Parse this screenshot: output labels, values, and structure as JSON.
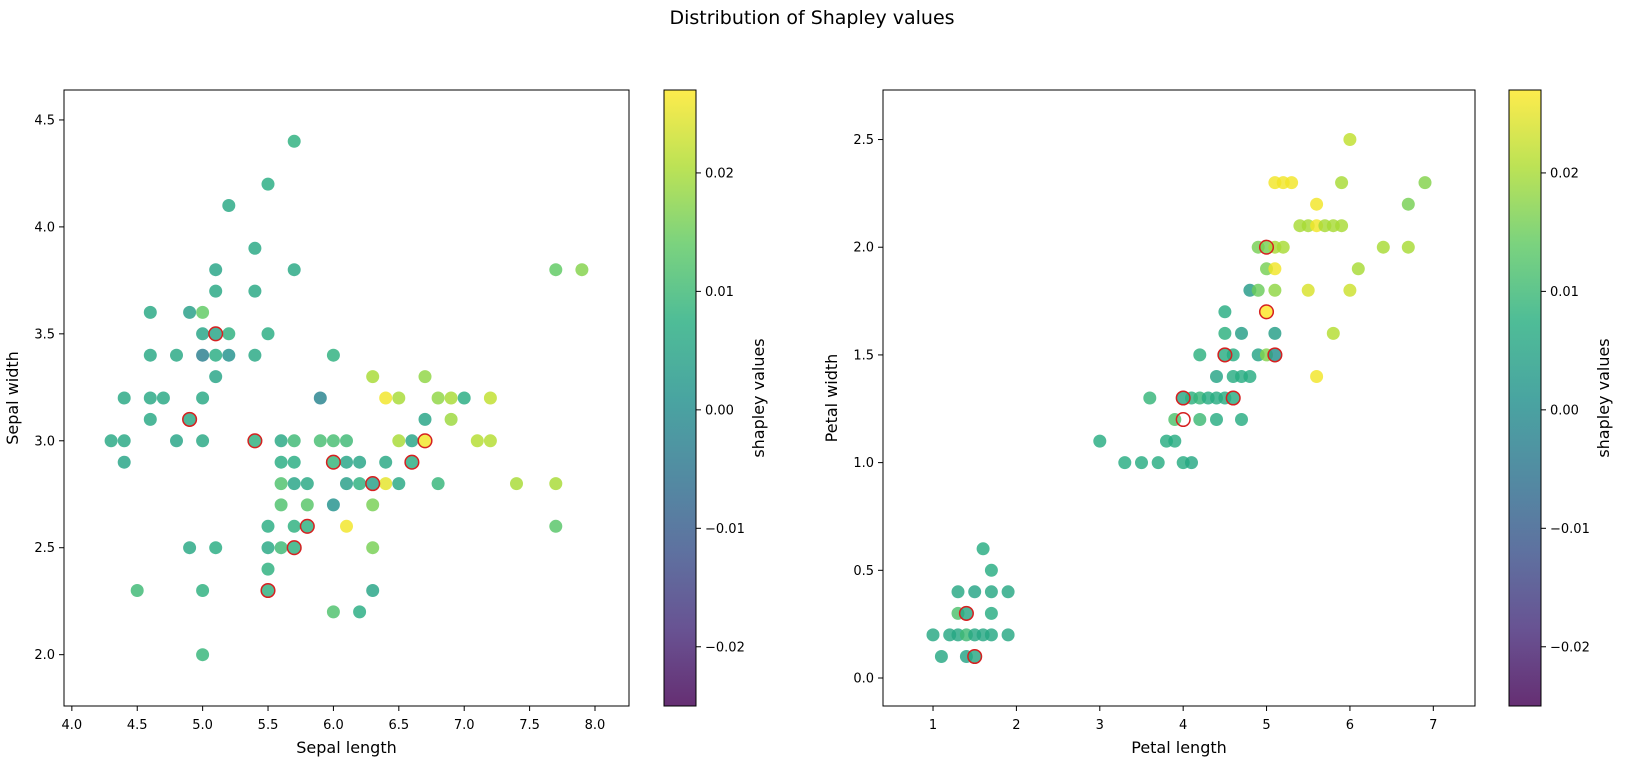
{
  "title": "Distribution of Shapley values",
  "colorbar": {
    "label": "shapley values",
    "range": [
      -0.025,
      0.027
    ],
    "ticks": [
      -0.02,
      -0.01,
      0.0,
      0.01,
      0.02
    ],
    "tick_labels": [
      "−0.02",
      "−0.01",
      "0.00",
      "0.01",
      "0.02"
    ],
    "colormap": "viridis"
  },
  "chart_data": [
    {
      "type": "scatter",
      "title": "",
      "xlabel": "Sepal length",
      "ylabel": "Sepal width",
      "xlim": [
        3.94,
        8.26
      ],
      "ylim": [
        1.76,
        4.64
      ],
      "xticks": [
        4.0,
        4.5,
        5.0,
        5.5,
        6.0,
        6.5,
        7.0,
        7.5,
        8.0
      ],
      "xtick_labels": [
        "4.0",
        "4.5",
        "5.0",
        "5.5",
        "6.0",
        "6.5",
        "7.0",
        "7.5",
        "8.0"
      ],
      "yticks": [
        2.0,
        2.5,
        3.0,
        3.5,
        4.0,
        4.5
      ],
      "ytick_labels": [
        "2.0",
        "2.5",
        "3.0",
        "3.5",
        "4.0",
        "4.5"
      ],
      "grid": false,
      "points": [
        [
          5.7,
          4.4,
          0.008
        ],
        [
          5.5,
          4.2,
          0.007
        ],
        [
          5.2,
          4.1,
          0.006
        ],
        [
          5.4,
          3.9,
          0.006
        ],
        [
          5.1,
          3.8,
          0.005
        ],
        [
          5.7,
          3.8,
          0.006
        ],
        [
          5.4,
          3.7,
          0.006
        ],
        [
          5.1,
          3.7,
          0.006
        ],
        [
          4.6,
          3.6,
          0.006
        ],
        [
          4.9,
          3.6,
          0.004
        ],
        [
          5.0,
          3.6,
          0.014
        ],
        [
          5.0,
          3.5,
          0.005
        ],
        [
          5.1,
          3.5,
          0.005
        ],
        [
          5.2,
          3.5,
          0.008
        ],
        [
          5.5,
          3.5,
          0.007
        ],
        [
          4.6,
          3.4,
          0.006
        ],
        [
          4.8,
          3.4,
          0.006
        ],
        [
          5.0,
          3.4,
          -0.003
        ],
        [
          5.1,
          3.4,
          0.007
        ],
        [
          5.2,
          3.4,
          0.001
        ],
        [
          5.4,
          3.4,
          0.006
        ],
        [
          6.0,
          3.4,
          0.008
        ],
        [
          5.1,
          3.3,
          0.005
        ],
        [
          6.3,
          3.3,
          0.02
        ],
        [
          6.7,
          3.3,
          0.018
        ],
        [
          4.4,
          3.2,
          0.006
        ],
        [
          4.6,
          3.2,
          0.006
        ],
        [
          4.7,
          3.2,
          0.006
        ],
        [
          5.0,
          3.2,
          0.006
        ],
        [
          6.4,
          3.2,
          0.026
        ],
        [
          6.5,
          3.2,
          0.02
        ],
        [
          6.8,
          3.2,
          0.018
        ],
        [
          6.9,
          3.2,
          0.02
        ],
        [
          7.0,
          3.2,
          0.007
        ],
        [
          7.2,
          3.2,
          0.022
        ],
        [
          5.9,
          3.2,
          -0.002
        ],
        [
          4.6,
          3.1,
          0.006
        ],
        [
          4.9,
          3.1,
          0.006
        ],
        [
          6.7,
          3.1,
          0.005
        ],
        [
          6.9,
          3.1,
          0.019
        ],
        [
          4.3,
          3.0,
          0.006
        ],
        [
          4.4,
          3.0,
          0.006
        ],
        [
          4.8,
          3.0,
          0.005
        ],
        [
          5.0,
          3.0,
          0.006
        ],
        [
          5.4,
          3.0,
          0.008
        ],
        [
          5.6,
          3.0,
          0.006
        ],
        [
          5.7,
          3.0,
          0.01
        ],
        [
          5.9,
          3.0,
          0.011
        ],
        [
          6.0,
          3.0,
          0.011
        ],
        [
          6.1,
          3.0,
          0.01
        ],
        [
          6.5,
          3.0,
          0.02
        ],
        [
          6.6,
          3.0,
          0.005
        ],
        [
          6.7,
          3.0,
          0.026
        ],
        [
          7.1,
          3.0,
          0.021
        ],
        [
          7.2,
          3.0,
          0.021
        ],
        [
          4.4,
          2.9,
          0.005
        ],
        [
          5.6,
          2.9,
          0.007
        ],
        [
          5.7,
          2.9,
          0.007
        ],
        [
          6.0,
          2.9,
          0.009
        ],
        [
          6.1,
          2.9,
          0.005
        ],
        [
          6.2,
          2.9,
          0.005
        ],
        [
          6.4,
          2.9,
          0.006
        ],
        [
          6.6,
          2.9,
          0.007
        ],
        [
          5.6,
          2.8,
          0.012
        ],
        [
          5.7,
          2.8,
          0.005
        ],
        [
          5.8,
          2.8,
          0.006
        ],
        [
          6.1,
          2.8,
          0.004
        ],
        [
          6.2,
          2.8,
          0.008
        ],
        [
          6.3,
          2.8,
          0.004
        ],
        [
          6.4,
          2.8,
          0.025
        ],
        [
          6.5,
          2.8,
          0.006
        ],
        [
          6.8,
          2.8,
          0.009
        ],
        [
          7.4,
          2.8,
          0.02
        ],
        [
          7.7,
          2.8,
          0.02
        ],
        [
          5.6,
          2.7,
          0.012
        ],
        [
          5.8,
          2.7,
          0.013
        ],
        [
          6.0,
          2.7,
          0.001
        ],
        [
          6.3,
          2.7,
          0.016
        ],
        [
          5.5,
          2.6,
          0.007
        ],
        [
          5.7,
          2.6,
          0.008
        ],
        [
          5.8,
          2.6,
          0.008
        ],
        [
          6.1,
          2.6,
          0.026
        ],
        [
          7.7,
          2.6,
          0.013
        ],
        [
          4.9,
          2.5,
          0.006
        ],
        [
          5.1,
          2.5,
          0.007
        ],
        [
          5.5,
          2.5,
          0.006
        ],
        [
          5.6,
          2.5,
          0.01
        ],
        [
          5.7,
          2.5,
          0.008
        ],
        [
          6.3,
          2.5,
          0.016
        ],
        [
          5.5,
          2.4,
          0.008
        ],
        [
          4.5,
          2.3,
          0.01
        ],
        [
          5.0,
          2.3,
          0.008
        ],
        [
          5.5,
          2.3,
          0.008
        ],
        [
          6.3,
          2.3,
          0.005
        ],
        [
          6.0,
          2.2,
          0.012
        ],
        [
          6.2,
          2.2,
          0.007
        ],
        [
          5.0,
          2.0,
          0.009
        ],
        [
          7.7,
          3.8,
          0.014
        ],
        [
          7.9,
          3.8,
          0.017
        ]
      ],
      "highlighted": [
        [
          5.1,
          3.5
        ],
        [
          4.9,
          3.1
        ],
        [
          5.4,
          3.0
        ],
        [
          6.7,
          3.0
        ],
        [
          6.0,
          2.9
        ],
        [
          6.6,
          2.9
        ],
        [
          6.3,
          2.8
        ],
        [
          5.8,
          2.6
        ],
        [
          5.7,
          2.5
        ],
        [
          5.5,
          2.3
        ]
      ]
    },
    {
      "type": "scatter",
      "title": "",
      "xlabel": "Petal length",
      "ylabel": "Petal width",
      "xlim": [
        0.4,
        7.5
      ],
      "ylim": [
        -0.13,
        2.73
      ],
      "xticks": [
        1,
        2,
        3,
        4,
        5,
        6,
        7
      ],
      "xtick_labels": [
        "1",
        "2",
        "3",
        "4",
        "5",
        "6",
        "7"
      ],
      "yticks": [
        0.0,
        0.5,
        1.0,
        1.5,
        2.0,
        2.5
      ],
      "ytick_labels": [
        "0.0",
        "0.5",
        "1.0",
        "1.5",
        "2.0",
        "2.5"
      ],
      "grid": false,
      "points": [
        [
          1.0,
          0.2,
          0.006
        ],
        [
          1.1,
          0.1,
          0.006
        ],
        [
          1.2,
          0.2,
          0.006
        ],
        [
          1.3,
          0.2,
          0.006
        ],
        [
          1.3,
          0.3,
          0.012
        ],
        [
          1.3,
          0.4,
          0.006
        ],
        [
          1.4,
          0.1,
          0.005
        ],
        [
          1.4,
          0.2,
          0.01
        ],
        [
          1.4,
          0.3,
          0.006
        ],
        [
          1.5,
          0.1,
          0.006
        ],
        [
          1.5,
          0.2,
          0.006
        ],
        [
          1.5,
          0.4,
          0.005
        ],
        [
          1.6,
          0.2,
          0.006
        ],
        [
          1.6,
          0.6,
          0.007
        ],
        [
          1.7,
          0.2,
          0.006
        ],
        [
          1.7,
          0.3,
          0.007
        ],
        [
          1.7,
          0.4,
          0.006
        ],
        [
          1.7,
          0.5,
          0.007
        ],
        [
          1.9,
          0.2,
          0.006
        ],
        [
          1.9,
          0.4,
          0.006
        ],
        [
          3.0,
          1.1,
          0.007
        ],
        [
          3.3,
          1.0,
          0.007
        ],
        [
          3.5,
          1.0,
          0.007
        ],
        [
          3.6,
          1.3,
          0.009
        ],
        [
          3.7,
          1.0,
          0.007
        ],
        [
          3.8,
          1.1,
          0.007
        ],
        [
          3.9,
          1.1,
          0.007
        ],
        [
          3.9,
          1.2,
          0.012
        ],
        [
          4.0,
          1.0,
          0.007
        ],
        [
          4.0,
          1.3,
          0.006
        ],
        [
          4.1,
          1.0,
          0.006
        ],
        [
          4.1,
          1.3,
          0.008
        ],
        [
          4.2,
          1.2,
          0.01
        ],
        [
          4.2,
          1.3,
          0.009
        ],
        [
          4.2,
          1.5,
          0.008
        ],
        [
          4.3,
          1.3,
          0.007
        ],
        [
          4.4,
          1.2,
          0.007
        ],
        [
          4.4,
          1.3,
          0.007
        ],
        [
          4.4,
          1.4,
          0.005
        ],
        [
          4.5,
          1.3,
          0.007
        ],
        [
          4.5,
          1.5,
          0.007
        ],
        [
          4.5,
          1.6,
          0.008
        ],
        [
          4.5,
          1.7,
          0.007
        ],
        [
          4.6,
          1.3,
          0.007
        ],
        [
          4.6,
          1.4,
          0.007
        ],
        [
          4.6,
          1.5,
          0.007
        ],
        [
          4.7,
          1.2,
          0.007
        ],
        [
          4.7,
          1.4,
          0.007
        ],
        [
          4.7,
          1.6,
          0.004
        ],
        [
          4.8,
          1.4,
          0.007
        ],
        [
          4.8,
          1.8,
          0.003
        ],
        [
          4.9,
          1.5,
          0.005
        ],
        [
          4.9,
          1.8,
          0.015
        ],
        [
          4.9,
          2.0,
          0.016
        ],
        [
          5.0,
          1.5,
          0.017
        ],
        [
          5.0,
          1.7,
          0.027
        ],
        [
          5.0,
          1.9,
          0.016
        ],
        [
          5.0,
          2.0,
          0.016
        ],
        [
          5.1,
          1.5,
          0.001
        ],
        [
          5.1,
          1.6,
          0.004
        ],
        [
          5.1,
          1.8,
          0.018
        ],
        [
          5.1,
          1.9,
          0.026
        ],
        [
          5.1,
          2.0,
          0.02
        ],
        [
          5.1,
          2.3,
          0.026
        ],
        [
          5.2,
          2.0,
          0.02
        ],
        [
          5.2,
          2.3,
          0.026
        ],
        [
          5.3,
          2.3,
          0.026
        ],
        [
          5.4,
          2.1,
          0.02
        ],
        [
          5.5,
          1.8,
          0.024
        ],
        [
          5.5,
          2.1,
          0.02
        ],
        [
          5.6,
          1.4,
          0.026
        ],
        [
          5.6,
          2.1,
          0.026
        ],
        [
          5.6,
          2.2,
          0.026
        ],
        [
          5.7,
          2.1,
          0.02
        ],
        [
          5.8,
          1.6,
          0.021
        ],
        [
          5.8,
          2.1,
          0.02
        ],
        [
          5.9,
          2.1,
          0.02
        ],
        [
          5.9,
          2.3,
          0.02
        ],
        [
          6.0,
          1.8,
          0.023
        ],
        [
          6.0,
          2.5,
          0.022
        ],
        [
          6.1,
          1.9,
          0.02
        ],
        [
          6.4,
          2.0,
          0.02
        ],
        [
          6.7,
          2.0,
          0.02
        ],
        [
          6.7,
          2.2,
          0.016
        ],
        [
          6.9,
          2.3,
          0.017
        ]
      ],
      "highlighted": [
        [
          1.4,
          0.3
        ],
        [
          1.5,
          0.1
        ],
        [
          4.0,
          1.3
        ],
        [
          4.0,
          1.2
        ],
        [
          4.5,
          1.5
        ],
        [
          4.6,
          1.3
        ],
        [
          5.0,
          2.0
        ],
        [
          5.0,
          1.7
        ],
        [
          5.1,
          1.5
        ]
      ]
    }
  ]
}
